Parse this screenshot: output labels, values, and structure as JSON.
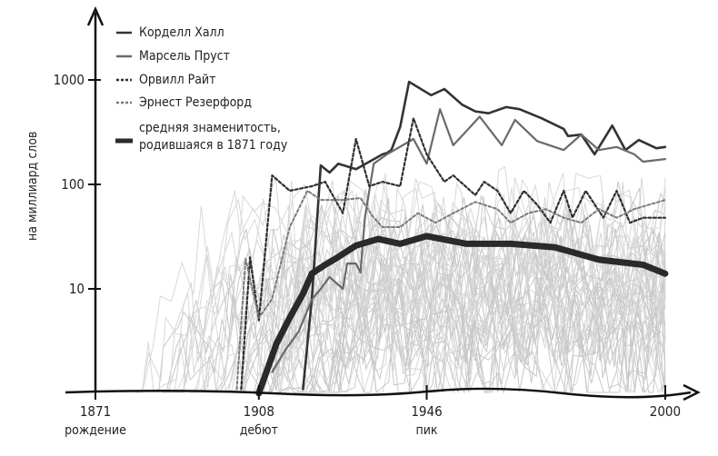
{
  "chart_data": {
    "type": "line",
    "title": "",
    "xlabel": "",
    "ylabel": "на миллиард слов",
    "yscale": "log",
    "xlim": [
      1871,
      2003
    ],
    "ylim": [
      1,
      4800
    ],
    "grid": false,
    "legend_position": "top-left",
    "x_ticks": [
      {
        "value": 1871,
        "label": "1871",
        "sublabel": "рождение"
      },
      {
        "value": 1908,
        "label": "1908",
        "sublabel": "дебют"
      },
      {
        "value": 1946,
        "label": "1946",
        "sublabel": "пик"
      },
      {
        "value": 2000,
        "label": "2000",
        "sublabel": ""
      }
    ],
    "y_ticks": [
      {
        "value": 10,
        "label": "10"
      },
      {
        "value": 100,
        "label": "100"
      },
      {
        "value": 1000,
        "label": "1000"
      }
    ],
    "series": [
      {
        "name": "Корделл Халл",
        "color": "#333333",
        "style": "solid",
        "width": 2.6,
        "x": [
          1918,
          1920,
          1922,
          1924,
          1926,
          1930,
          1936,
          1937,
          1938,
          1940,
          1942,
          1947,
          1950,
          1954,
          1957,
          1960,
          1964,
          1967,
          1972,
          1977,
          1978,
          1981,
          1984,
          1988,
          1991,
          1994,
          1998,
          2000
        ],
        "y": [
          1.1,
          8,
          152,
          130,
          158,
          140,
          194,
          200,
          213,
          355,
          958,
          714,
          819,
          580,
          500,
          480,
          550,
          525,
          430,
          340,
          290,
          300,
          194,
          365,
          213,
          266,
          222,
          228
        ]
      },
      {
        "name": "Марсель Пруст",
        "color": "#6a6a6a",
        "style": "solid",
        "width": 2.2,
        "x": [
          1911,
          1914,
          1917,
          1920,
          1922,
          1924,
          1927,
          1928,
          1930,
          1931,
          1932,
          1934,
          1937,
          1943,
          1946,
          1949,
          1952,
          1958,
          1963,
          1966,
          1971,
          1977,
          1981,
          1985,
          1989,
          1993,
          1995,
          2000
        ],
        "y": [
          1.6,
          2.6,
          3.9,
          7.9,
          10,
          13,
          10,
          17.5,
          17.5,
          14.3,
          48,
          158,
          194,
          272,
          158,
          525,
          237,
          445,
          237,
          415,
          260,
          213,
          300,
          213,
          228,
          194,
          165,
          175
        ]
      },
      {
        "name": "Орвилл Райт",
        "color": "#2e2e2e",
        "style": "dashed",
        "width": 2.2,
        "x": [
          1904,
          1906,
          1908,
          1911,
          1915,
          1920,
          1923,
          1927,
          1930,
          1933,
          1936,
          1940,
          1943,
          1946,
          1950,
          1952,
          1957,
          1959,
          1962,
          1965,
          1968,
          1971,
          1974,
          1977,
          1979,
          1982,
          1986,
          1989,
          1992,
          1995,
          2000
        ],
        "y": [
          1.1,
          20,
          5,
          122,
          87,
          96,
          106,
          53,
          272,
          96,
          106,
          96,
          430,
          194,
          106,
          122,
          79,
          106,
          87,
          53,
          87,
          64,
          43,
          87,
          48,
          87,
          48,
          87,
          43,
          48,
          48
        ]
      },
      {
        "name": "Эрнест Резерфорд",
        "color": "#7a7a7a",
        "style": "dashed",
        "width": 2,
        "x": [
          1903,
          1905,
          1908,
          1911,
          1915,
          1919,
          1922,
          1927,
          1931,
          1934,
          1936,
          1940,
          1944,
          1948,
          1952,
          1957,
          1962,
          1965,
          1969,
          1973,
          1977,
          1981,
          1985,
          1989,
          1993,
          2000
        ],
        "y": [
          1.1,
          19.4,
          5.3,
          8,
          39,
          87,
          71,
          71,
          74,
          48,
          39,
          39,
          53,
          43,
          53,
          68,
          58,
          43,
          53,
          58,
          48,
          43,
          58,
          48,
          58,
          71
        ]
      },
      {
        "name": "средняя знаменитость, родившаяся в 1871 году",
        "color": "#2a2a2a",
        "style": "solid",
        "width": 7,
        "x": [
          1908,
          1912,
          1915,
          1918,
          1920,
          1923,
          1925,
          1930,
          1935,
          1940,
          1946,
          1955,
          1965,
          1975,
          1985,
          1995,
          2000
        ],
        "y": [
          1,
          3,
          5.3,
          9,
          14,
          17,
          19,
          26,
          30,
          27,
          32,
          27,
          27,
          25,
          19,
          17,
          14
        ]
      }
    ]
  }
}
